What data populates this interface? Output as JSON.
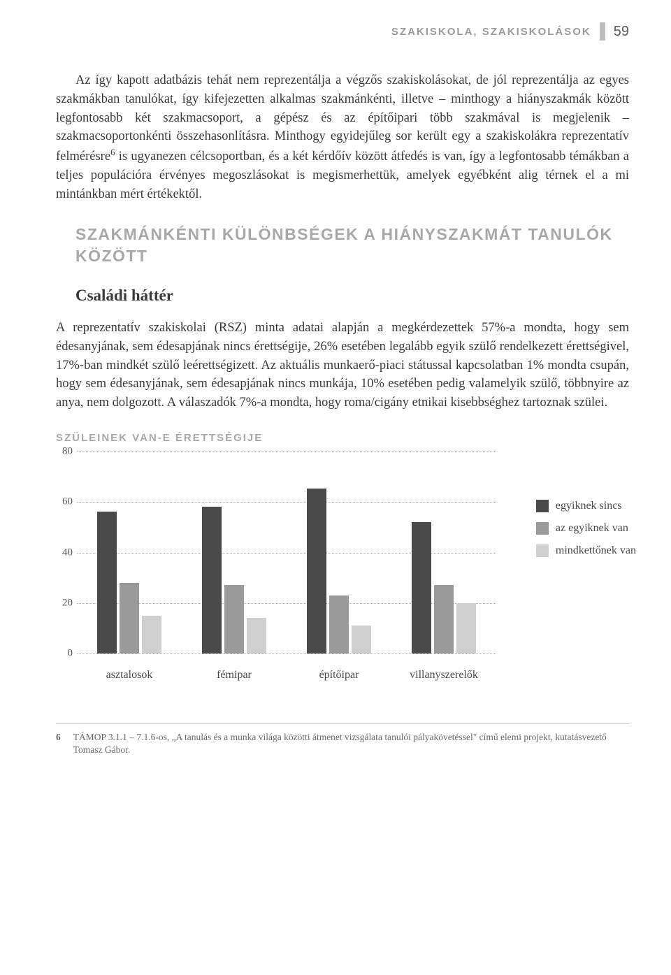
{
  "header": {
    "running_title": "SZAKISKOLA, SZAKISKOLÁSOK",
    "page_number": "59"
  },
  "paragraphs": {
    "p1": "Az így kapott adatbázis tehát nem reprezentálja a végzős szakiskolásokat, de jól reprezentálja az egyes szakmákban tanulókat, így kifejezetten alkalmas szakmánkénti, illetve – minthogy a hiányszakmák között legfontosabb két szakmacsoport, a gépész és az építőipari több szakmával is megjelenik – szakmacsoportonkénti összehasonlításra. Minthogy egyidejűleg sor került egy a szakiskolákra reprezentatív felmérésre",
    "p1_footref": "6",
    "p1_tail": " is ugyanezen célcsoportban, és a két kérdőív között átfedés is van, így a legfontosabb témákban a teljes populációra érvényes megoszlásokat is megismerhettük, amelyek egyébként alig térnek el a mi mintánkban mért értékektől.",
    "p2": "A reprezentatív szakiskolai (RSZ) minta adatai alapján a megkérdezettek 57%-a mondta, hogy sem édesanyjának, sem édesapjának nincs érettségije, 26% esetében legalább egyik szülő rendelkezett érettségivel, 17%-ban mindkét szülő leérettségizett. Az aktuális munkaerő-piaci státussal kapcsolatban 1% mondta csupán, hogy sem édesanyjának, sem édesapjának nincs munkája, 10% esetében pedig valamelyik szülő, többnyire az anya, nem dolgozott. A válaszadók 7%-a mondta, hogy roma/cigány etnikai kisebbséghez tartoznak szülei."
  },
  "headings": {
    "section": "SZAKMÁNKÉNTI KÜLÖNBSÉGEK A HIÁNYSZAKMÁT TANULÓK KÖZÖTT",
    "subsection": "Családi háttér"
  },
  "chart": {
    "title": "SZÜLEINEK VAN-E ÉRETTSÉGIJE",
    "type": "bar",
    "ylim": [
      0,
      80
    ],
    "ytick_step": 20,
    "yticks": [
      "80",
      "60",
      "40",
      "20",
      "0"
    ],
    "categories": [
      "asztalosok",
      "fémipar",
      "építőipar",
      "villanyszerelők"
    ],
    "series": [
      {
        "label": "egyiknek sincs",
        "color": "#4a4a4a",
        "values": [
          56,
          58,
          65,
          52
        ]
      },
      {
        "label": "az egyiknek van",
        "color": "#9a9a9a",
        "values": [
          28,
          27,
          23,
          27
        ]
      },
      {
        "label": "mindkettőnek van",
        "color": "#cfcfcf",
        "values": [
          15,
          14,
          11,
          20
        ]
      }
    ],
    "grid_color": "#b0b0b0",
    "background": "#ffffff"
  },
  "footnote": {
    "num": "6",
    "text": "TÁMOP 3.1.1 – 7.1.6-os, „A tanulás és a munka világa közötti átmenet vizsgálata tanulói pályakövetéssel\" című elemi projekt, kutatásvezető Tomasz Gábor."
  }
}
